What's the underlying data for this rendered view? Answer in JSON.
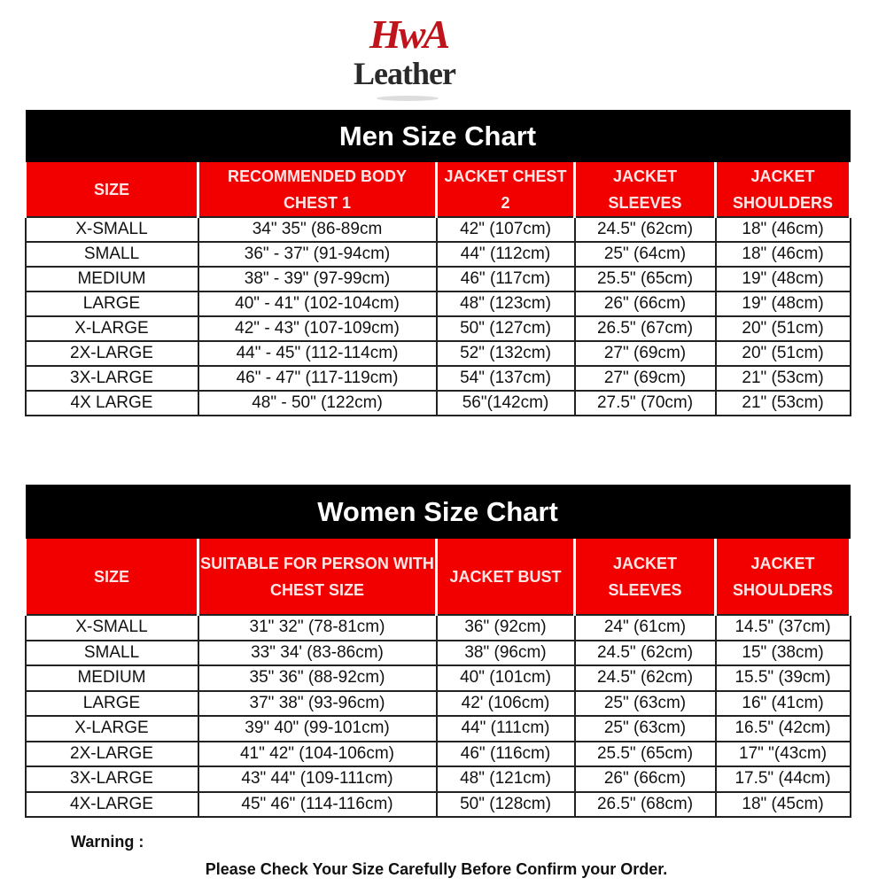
{
  "logo": {
    "line1": "HwA",
    "line2": "Leather"
  },
  "men": {
    "title": "Men Size Chart",
    "headers": [
      "SIZE",
      "RECOMMENDED BODY CHEST 1",
      "JACKET CHEST 2",
      "JACKET SLEEVES",
      "JACKET SHOULDERS"
    ],
    "rows": [
      [
        "X-SMALL",
        "34\" 35\" (86-89cm",
        "42\" (107cm)",
        "24.5\" (62cm)",
        "18\" (46cm)"
      ],
      [
        "SMALL",
        "36\" - 37\" (91-94cm)",
        "44\" (112cm)",
        "25\" (64cm)",
        "18\" (46cm)"
      ],
      [
        "MEDIUM",
        "38\" - 39\" (97-99cm)",
        "46\" (117cm)",
        "25.5\" (65cm)",
        "19\" (48cm)"
      ],
      [
        "LARGE",
        "40\" - 41\" (102-104cm)",
        "48\" (123cm)",
        "26\" (66cm)",
        "19\" (48cm)"
      ],
      [
        "X-LARGE",
        "42\" - 43\" (107-109cm)",
        "50\" (127cm)",
        "26.5\" (67cm)",
        "20\" (51cm)"
      ],
      [
        "2X-LARGE",
        "44\" - 45\" (112-114cm)",
        "52\" (132cm)",
        "27\" (69cm)",
        "20\" (51cm)"
      ],
      [
        "3X-LARGE",
        "46\" - 47\" (117-119cm)",
        "54\" (137cm)",
        "27\" (69cm)",
        "21\" (53cm)"
      ],
      [
        "4X LARGE",
        "48\" - 50\" (122cm)",
        "56\"(142cm)",
        "27.5\" (70cm)",
        "21\" (53cm)"
      ]
    ]
  },
  "women": {
    "title": "Women Size Chart",
    "headers": [
      "SIZE",
      "SUITABLE FOR PERSON WITH CHEST SIZE",
      "JACKET BUST",
      "JACKET SLEEVES",
      "JACKET SHOULDERS"
    ],
    "rows": [
      [
        "X-SMALL",
        "31\" 32\" (78-81cm)",
        "36\" (92cm)",
        "24\" (61cm)",
        "14.5\" (37cm)"
      ],
      [
        "SMALL",
        "33\" 34' (83-86cm)",
        "38\" (96cm)",
        "24.5\" (62cm)",
        "15\" (38cm)"
      ],
      [
        "MEDIUM",
        "35\" 36\" (88-92cm)",
        "40\" (101cm)",
        "24.5\" (62cm)",
        "15.5\" (39cm)"
      ],
      [
        "LARGE",
        "37\" 38\" (93-96cm)",
        "42' (106cm)",
        "25\" (63cm)",
        "16\" (41cm)"
      ],
      [
        "X-LARGE",
        "39\" 40\" (99-101cm)",
        "44\" (111cm)",
        "25\" (63cm)",
        "16.5\" (42cm)"
      ],
      [
        "2X-LARGE",
        "41\" 42\" (104-106cm)",
        "46\" (116cm)",
        "25.5\" (65cm)",
        "17\" \"(43cm)"
      ],
      [
        "3X-LARGE",
        "43\" 44\" (109-111cm)",
        "48\" (121cm)",
        "26\" (66cm)",
        "17.5\" (44cm)"
      ],
      [
        "4X-LARGE",
        "45\" 46\" (114-116cm)",
        "50\" (128cm)",
        "26.5\" (68cm)",
        "18\" (45cm)"
      ]
    ]
  },
  "warning": {
    "label": "Warning :",
    "text": "Please Check Your Size Carefully Before Confirm your Order."
  },
  "colors": {
    "header_red": "#f20000",
    "title_black": "#000000",
    "logo_red": "#c0141c"
  }
}
